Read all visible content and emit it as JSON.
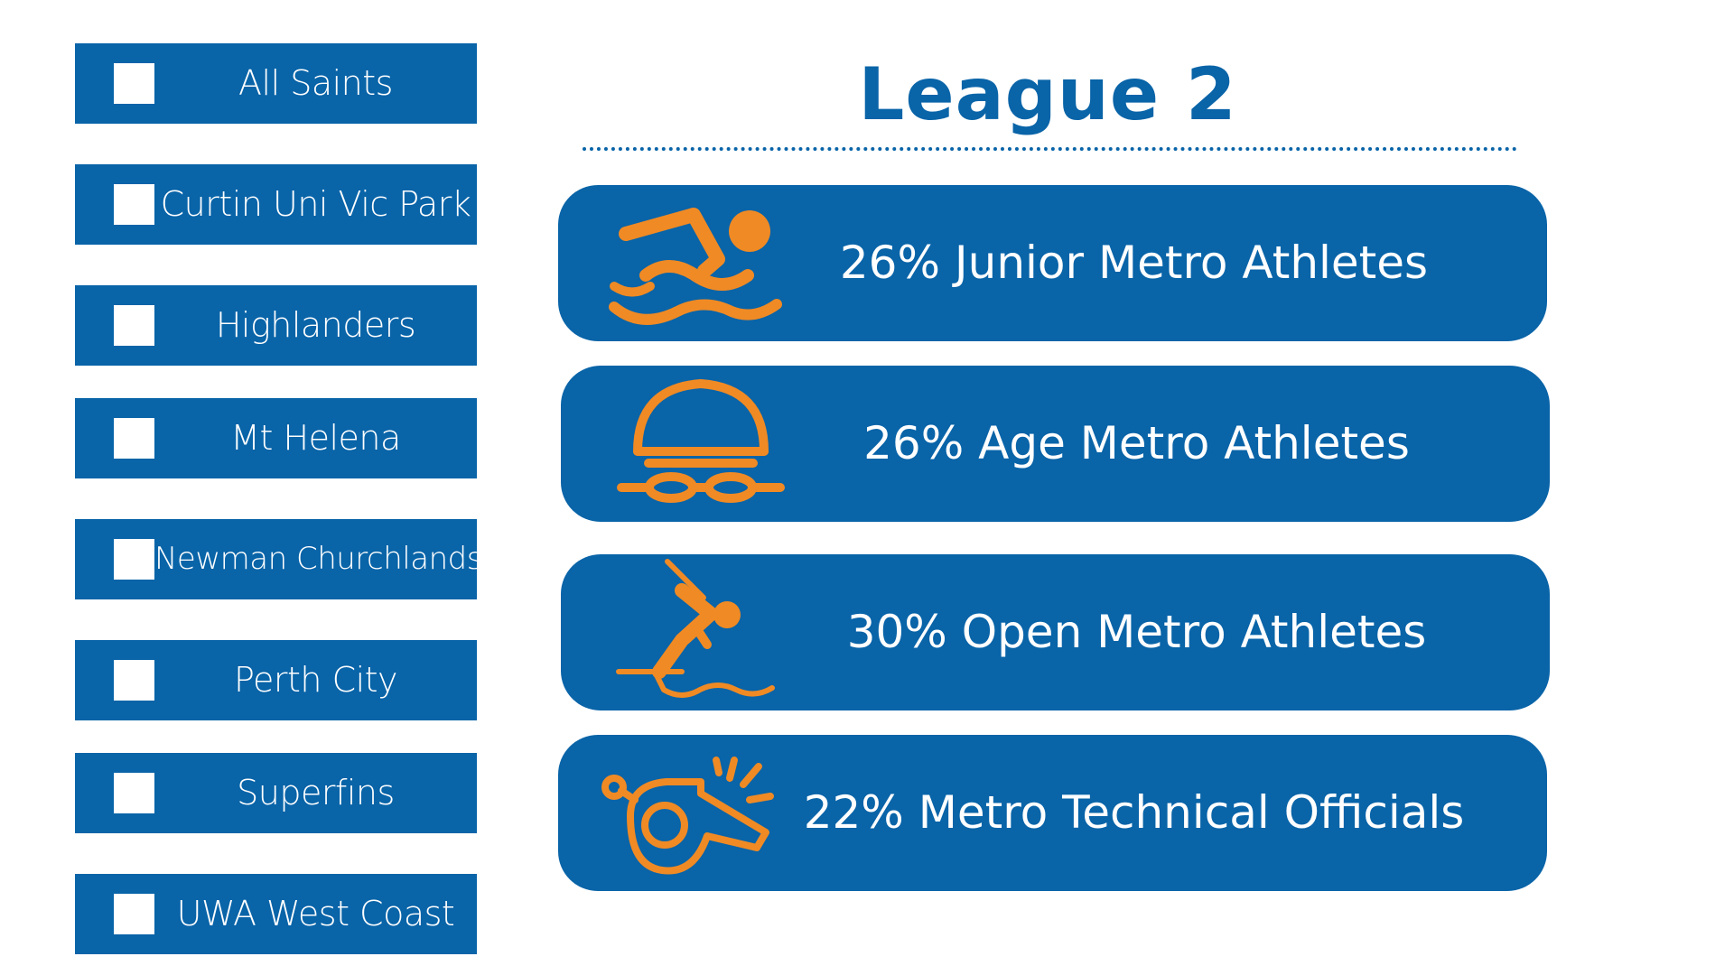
{
  "colors": {
    "blue": "#0964a8",
    "orange": "#f08a24",
    "white": "#ffffff"
  },
  "header": {
    "title": "League 2"
  },
  "clubs": [
    {
      "name": "All Saints",
      "checked": false
    },
    {
      "name": "Curtin Uni Vic Park",
      "checked": false
    },
    {
      "name": "Highlanders",
      "checked": false
    },
    {
      "name": "Mt Helena",
      "checked": false
    },
    {
      "name": "Newman Churchlands",
      "checked": false
    },
    {
      "name": "Perth City",
      "checked": false
    },
    {
      "name": "Superfins",
      "checked": false
    },
    {
      "name": "UWA West Coast",
      "checked": false
    }
  ],
  "stats": [
    {
      "label": "26% Junior Metro Athletes",
      "icon": "swimmer-icon"
    },
    {
      "label": "26% Age Metro Athletes",
      "icon": "swim-cap-goggles-icon"
    },
    {
      "label": "30% Open Metro Athletes",
      "icon": "diver-icon"
    },
    {
      "label": "22% Metro Technical Officials",
      "icon": "whistle-icon"
    }
  ]
}
